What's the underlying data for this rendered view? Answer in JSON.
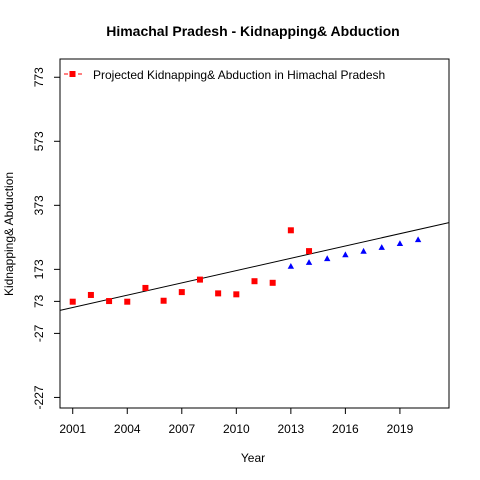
{
  "chart_data": {
    "type": "scatter",
    "title": "Himachal Pradesh  -  Kidnapping& Abduction",
    "xlabel": "Year",
    "ylabel": "Kidnapping& Abduction",
    "xlim": [
      2000.3,
      2021.7
    ],
    "ylim": [
      -260,
      830
    ],
    "x_ticks": [
      2001,
      2004,
      2007,
      2010,
      2013,
      2016,
      2019
    ],
    "y_ticks": [
      -227,
      -27,
      73,
      173,
      373,
      573,
      773
    ],
    "legend": {
      "position": "top-left",
      "label": "Projected  Kidnapping& Abduction  in  Himachal Pradesh"
    },
    "series": [
      {
        "name": "Kidnapping& Abduction",
        "marker": "square",
        "color": "#ff0000",
        "x": [
          2001,
          2002,
          2003,
          2004,
          2005,
          2006,
          2007,
          2008,
          2009,
          2010,
          2011,
          2012,
          2013,
          2014
        ],
        "y": [
          72,
          93,
          74,
          72,
          115,
          75,
          102,
          141,
          98,
          95,
          136,
          131,
          295,
          230
        ]
      },
      {
        "marker": "triangle",
        "color": "#0000ff",
        "x": [
          2013,
          2014,
          2015,
          2016,
          2017,
          2018,
          2019,
          2020
        ],
        "y": [
          183,
          195,
          207,
          219,
          230,
          242,
          254,
          266
        ]
      }
    ],
    "trend_line": {
      "color": "#000000",
      "x": [
        2000.3,
        2021.7
      ],
      "y": [
        45,
        319
      ]
    }
  }
}
